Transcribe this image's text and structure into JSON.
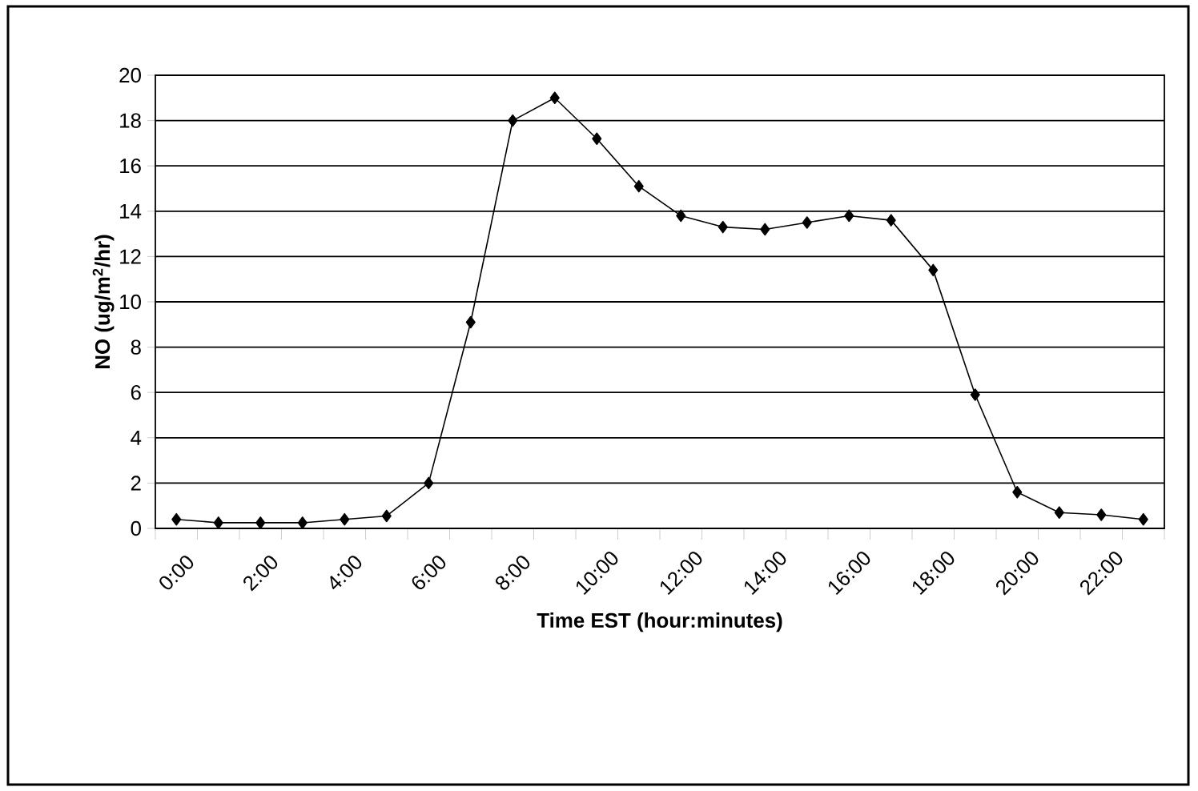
{
  "chart_data": {
    "type": "line",
    "xlabel": "Time EST (hour:minutes)",
    "ylabel": "NO (ug/m$^{2}$/hr)",
    "categories": [
      "0:00",
      null,
      "2:00",
      null,
      "4:00",
      null,
      "6:00",
      null,
      "8:00",
      null,
      "10:00",
      null,
      "12:00",
      null,
      "14:00",
      null,
      "16:00",
      null,
      "18:00",
      null,
      "20:00",
      null,
      "22:00",
      null
    ],
    "series": [
      {
        "color": "#000000",
        "values": [
          0.4,
          0.25,
          0.25,
          0.25,
          0.4,
          0.55,
          2.0,
          9.1,
          18.0,
          19.0,
          17.2,
          15.1,
          13.8,
          13.3,
          13.2,
          13.5,
          13.8,
          13.6,
          11.4,
          5.9,
          1.6,
          0.7,
          0.6,
          0.4
        ]
      }
    ],
    "ylim": [
      0,
      20
    ],
    "yticks": [
      0,
      2,
      4,
      6,
      8,
      10,
      12,
      14,
      16,
      18,
      20
    ],
    "grid": "y",
    "marker": "diamond",
    "line_style": "solid"
  }
}
